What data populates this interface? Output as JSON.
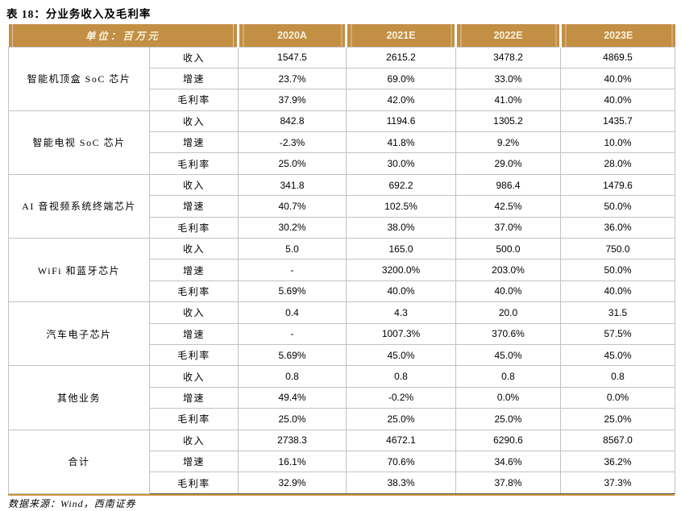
{
  "title": "表 18：分业务收入及毛利率",
  "source": "数据来源：Wind，西南证券",
  "colors": {
    "header_bg": "#C28F44",
    "header_text": "#F8F1DC",
    "grid_line": "#C2C2C2",
    "bottom_rule_gold": "#C9953F",
    "bottom_rule_dark": "#595959"
  },
  "table": {
    "unit_label": "单位：百万元",
    "year_columns": [
      "2020A",
      "2021E",
      "2022E",
      "2023E"
    ],
    "metric_labels": [
      "收入",
      "增速",
      "毛利率"
    ],
    "groups": [
      {
        "name": "智能机顶盒 SoC 芯片",
        "rows": [
          [
            "1547.5",
            "2615.2",
            "3478.2",
            "4869.5"
          ],
          [
            "23.7%",
            "69.0%",
            "33.0%",
            "40.0%"
          ],
          [
            "37.9%",
            "42.0%",
            "41.0%",
            "40.0%"
          ]
        ]
      },
      {
        "name": "智能电视 SoC 芯片",
        "rows": [
          [
            "842.8",
            "1194.6",
            "1305.2",
            "1435.7"
          ],
          [
            "-2.3%",
            "41.8%",
            "9.2%",
            "10.0%"
          ],
          [
            "25.0%",
            "30.0%",
            "29.0%",
            "28.0%"
          ]
        ]
      },
      {
        "name": "AI 音视频系统终端芯片",
        "rows": [
          [
            "341.8",
            "692.2",
            "986.4",
            "1479.6"
          ],
          [
            "40.7%",
            "102.5%",
            "42.5%",
            "50.0%"
          ],
          [
            "30.2%",
            "38.0%",
            "37.0%",
            "36.0%"
          ]
        ]
      },
      {
        "name": "WiFi 和蓝牙芯片",
        "rows": [
          [
            "5.0",
            "165.0",
            "500.0",
            "750.0"
          ],
          [
            "-",
            "3200.0%",
            "203.0%",
            "50.0%"
          ],
          [
            "5.69%",
            "40.0%",
            "40.0%",
            "40.0%"
          ]
        ]
      },
      {
        "name": "汽车电子芯片",
        "rows": [
          [
            "0.4",
            "4.3",
            "20.0",
            "31.5"
          ],
          [
            "-",
            "1007.3%",
            "370.6%",
            "57.5%"
          ],
          [
            "5.69%",
            "45.0%",
            "45.0%",
            "45.0%"
          ]
        ]
      },
      {
        "name": "其他业务",
        "rows": [
          [
            "0.8",
            "0.8",
            "0.8",
            "0.8"
          ],
          [
            "49.4%",
            "-0.2%",
            "0.0%",
            "0.0%"
          ],
          [
            "25.0%",
            "25.0%",
            "25.0%",
            "25.0%"
          ]
        ]
      },
      {
        "name": "合计",
        "rows": [
          [
            "2738.3",
            "4672.1",
            "6290.6",
            "8567.0"
          ],
          [
            "16.1%",
            "70.6%",
            "34.6%",
            "36.2%"
          ],
          [
            "32.9%",
            "38.3%",
            "37.8%",
            "37.3%"
          ]
        ]
      }
    ]
  }
}
